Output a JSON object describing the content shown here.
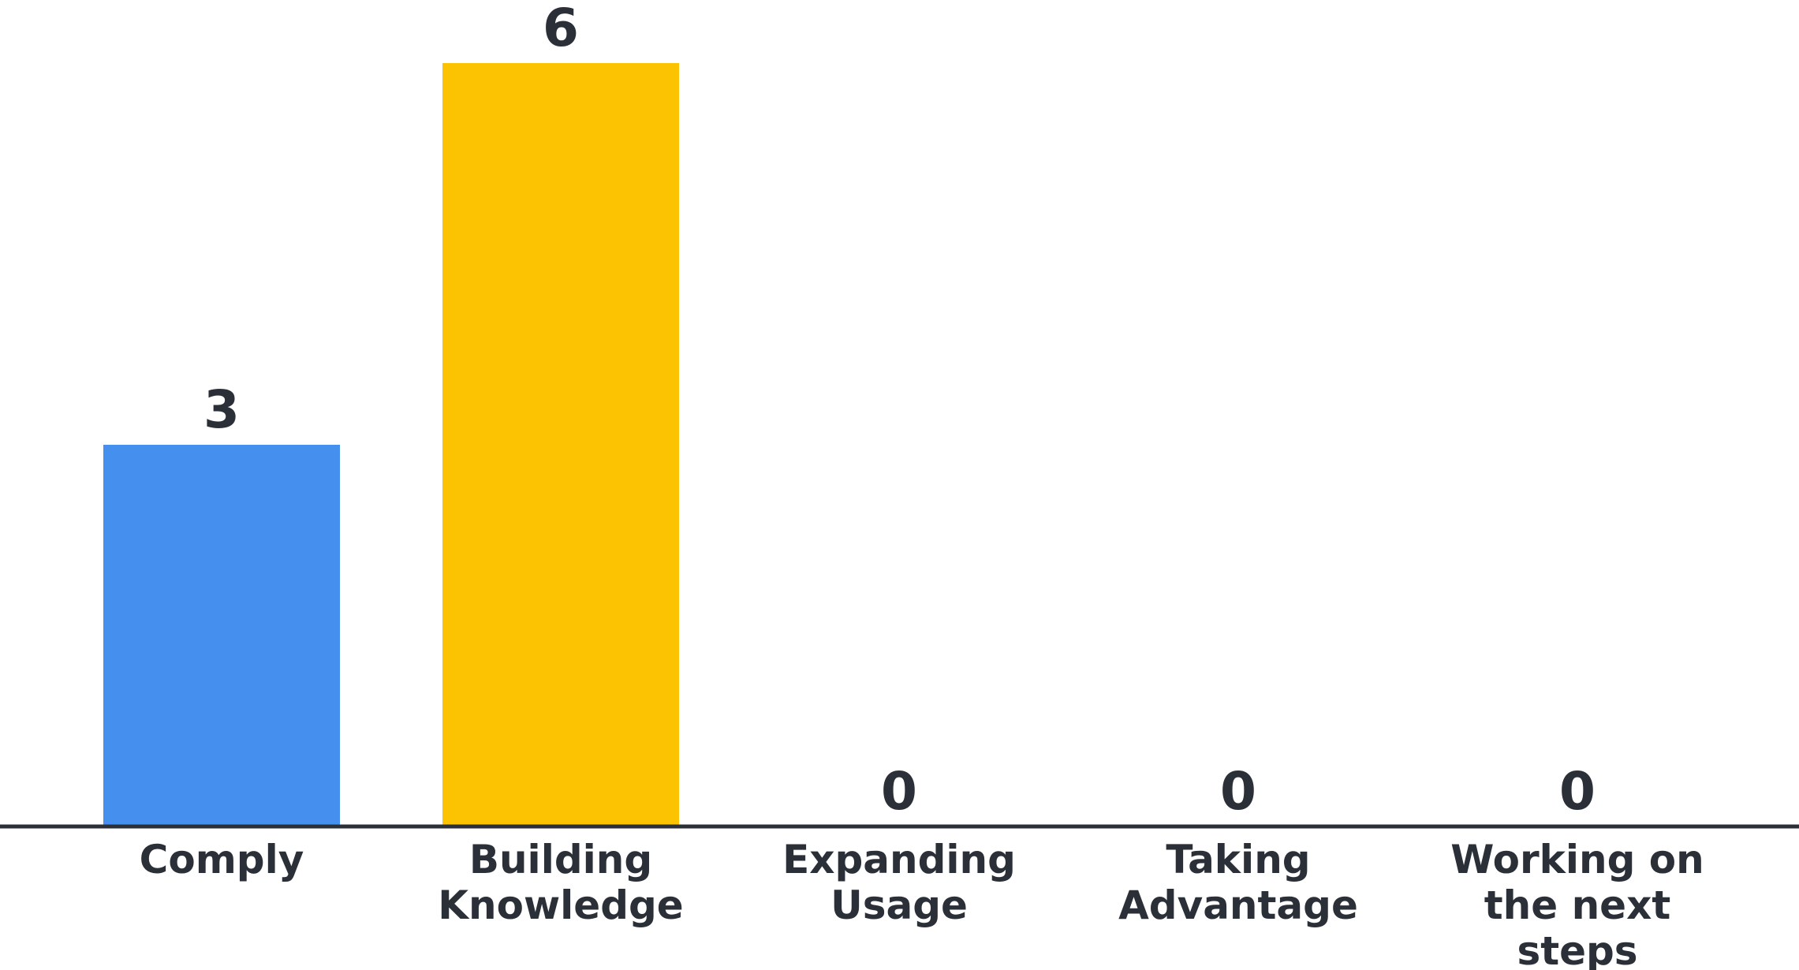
{
  "chart_data": {
    "type": "bar",
    "categories": [
      [
        "Comply"
      ],
      [
        "Building",
        "Knowledge"
      ],
      [
        "Expanding",
        "Usage"
      ],
      [
        "Taking",
        "Advantage"
      ],
      [
        "Working on",
        "the next",
        "steps"
      ]
    ],
    "values": [
      3,
      6,
      0,
      0,
      0
    ],
    "value_labels": [
      "3",
      "6",
      "0",
      "0",
      "0"
    ],
    "colors": [
      "#4590ee",
      "#fcc302",
      "#4590ee",
      "#4590ee",
      "#4590ee"
    ],
    "axis_color": "#2b2f38",
    "ylim": [
      0,
      6
    ],
    "grid": false,
    "legend": "none",
    "title": "",
    "xlabel": "",
    "ylabel": ""
  }
}
